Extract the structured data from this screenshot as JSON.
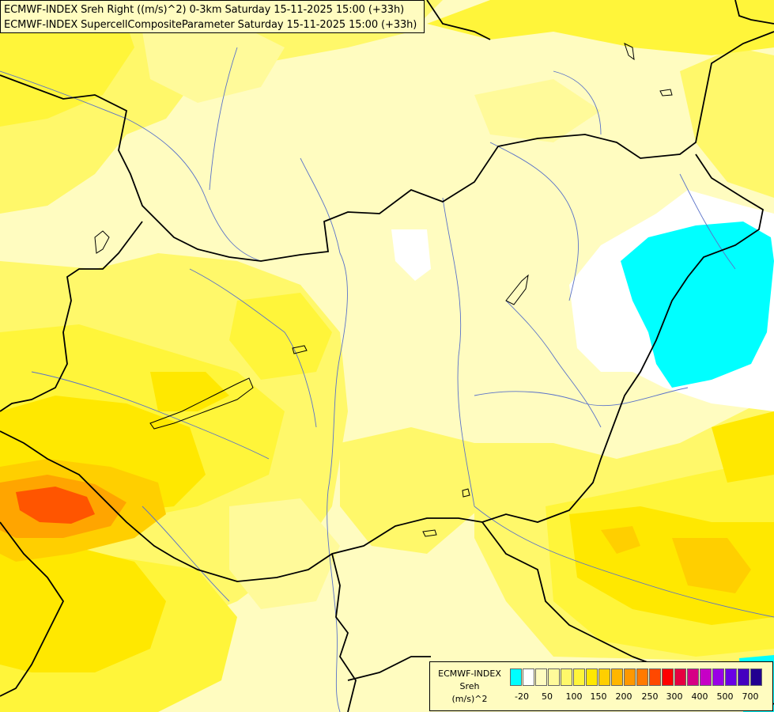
{
  "header": {
    "line1": "ECMWF-INDEX Sreh Right ((m/s)^2) 0-3km Saturday 15-11-2025 15:00 (+33h)",
    "line2": "ECMWF-INDEX SupercellCompositeParameter Saturday 15-11-2025 15:00 (+33h)"
  },
  "legend": {
    "title_lines": [
      "ECMWF-INDEX",
      "Sreh",
      "(m/s)^2"
    ],
    "swatch_colors": [
      "#00ffff",
      "#ffffff",
      "#fffcc0",
      "#fffa9a",
      "#fff86a",
      "#fff53a",
      "#ffe800",
      "#ffcf00",
      "#ffb600",
      "#ff9800",
      "#ff7a00",
      "#ff4800",
      "#ff0000",
      "#e60040",
      "#d60085",
      "#c600c6",
      "#9a00e6",
      "#6a00e6",
      "#4400c0",
      "#220090"
    ],
    "tick_labels": [
      "-20",
      "50",
      "100",
      "150",
      "200",
      "250",
      "300",
      "400",
      "500",
      "700"
    ]
  },
  "colors": {
    "background": "#fffcc0",
    "shade_pale": "#fffa9a",
    "shade_light": "#fff86a",
    "shade_mid": "#fff53a",
    "shade_strong": "#ffe800",
    "shade_deep": "#ffcf00",
    "shade_orange": "#ffa500",
    "shade_red": "#ff5500",
    "negative_low": "#00ffff",
    "zero_white": "#ffffff",
    "border_color": "#000000",
    "river_color": "#5a72c8"
  }
}
